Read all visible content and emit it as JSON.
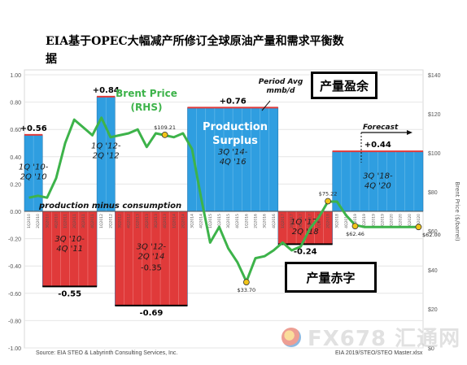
{
  "title": "EIA基于OPEC大幅减产所修订全球原油产量和需求平衡数据",
  "callouts": {
    "surplus": "产量盈余",
    "deficit": "产量赤字"
  },
  "watermark": "FX678 汇通网",
  "chart_data": {
    "type": "bar",
    "source": "Source:  EIA STEO & Labyrinth Consulting Services, Inc.",
    "file_note": "EIA 2019/STEO/STEO Master.xlsx",
    "left_axis": {
      "ylim": [
        -1.0,
        1.0
      ],
      "ticks": [
        "1.00",
        "0.80",
        "0.60",
        "0.40",
        "0.20",
        "0.00",
        "-0.20",
        "-0.40",
        "-0.60",
        "-0.80",
        "-1.00"
      ]
    },
    "right_axis": {
      "label": "Brent Price ($/barrel)",
      "ylim": [
        0,
        140
      ],
      "ticks": [
        "$140",
        "$120",
        "$100",
        "$80",
        "$60",
        "$40",
        "$20",
        "$0"
      ]
    },
    "quarters": [
      "1Q2010",
      "2Q2010",
      "3Q2010",
      "4Q2010",
      "1Q2011",
      "2Q2011",
      "3Q2011",
      "4Q2011",
      "1Q2012",
      "2Q2012",
      "3Q2012",
      "4Q2012",
      "1Q2013",
      "2Q2013",
      "3Q2013",
      "4Q2013",
      "1Q2014",
      "2Q2014",
      "3Q2014",
      "4Q2014",
      "1Q2015",
      "2Q2015",
      "3Q2015",
      "4Q2015",
      "1Q2016",
      "2Q2016",
      "3Q2016",
      "4Q2016",
      "1Q2017",
      "2Q2017",
      "3Q2017",
      "4Q2017",
      "1Q2018",
      "2Q2018",
      "3Q2018",
      "4Q2018",
      "1Q2019",
      "2Q2019",
      "3Q2019",
      "4Q2019",
      "1Q2020",
      "2Q2020",
      "3Q2020",
      "4Q2020"
    ],
    "balance_blocks": [
      {
        "from": 0,
        "to": 1,
        "value": 0.56,
        "value_label": "+0.56",
        "period": "1Q '10-\n2Q '10",
        "color": "#2f9ee0"
      },
      {
        "from": 2,
        "to": 7,
        "value": -0.55,
        "value_label": "-0.55",
        "period": "3Q '10-\n4Q '11",
        "color": "#e03a3a"
      },
      {
        "from": 8,
        "to": 9,
        "value": 0.84,
        "value_label": "+0.84",
        "period": "1Q '12-\n2Q '12",
        "color": "#2f9ee0"
      },
      {
        "from": 10,
        "to": 17,
        "value": -0.69,
        "value_label": "-0.69",
        "period": "3Q '12-\n2Q '14",
        "extra_label": "-0.35",
        "color": "#e03a3a"
      },
      {
        "from": 18,
        "to": 27,
        "value": 0.76,
        "value_label": "+0.76",
        "period": "3Q '14-\n4Q '16",
        "color": "#2f9ee0"
      },
      {
        "from": 28,
        "to": 33,
        "value": -0.24,
        "value_label": "-0.24",
        "period": "1Q '17-\n2Q '18",
        "color": "#e03a3a"
      },
      {
        "from": 34,
        "to": 43,
        "value": 0.44,
        "value_label": "+0.44",
        "period": "3Q '18-\n4Q '20",
        "color": "#2f9ee0"
      }
    ],
    "brent_price": {
      "name": "Brent Price",
      "axis_label": "(RHS)",
      "color": "#3db34a",
      "values": [
        77,
        78,
        77,
        87,
        105,
        117,
        113,
        109,
        118,
        108,
        109,
        110,
        112,
        103,
        110,
        109,
        108,
        110,
        102,
        77,
        54,
        62,
        51,
        44,
        34,
        46,
        47,
        50,
        54,
        50,
        52,
        61,
        67,
        75,
        75,
        68,
        63,
        62,
        62,
        62,
        62,
        62,
        62,
        62
      ],
      "point_labels": [
        {
          "index": 15,
          "value": 109.21,
          "label": "$109.21"
        },
        {
          "index": 24,
          "value": 33.7,
          "label": "$33.70"
        },
        {
          "index": 33,
          "value": 75.22,
          "label": "$75.22"
        },
        {
          "index": 36,
          "value": 62.46,
          "label": "$62.46"
        },
        {
          "index": 43,
          "value": 62.0,
          "label": "$62.00"
        }
      ]
    },
    "annotations": {
      "production_minus_consumption": "production minus consumption",
      "production_surplus": "Production\nSurplus",
      "period_avg": "Period Avg\nmmb/d",
      "forecast": "Forecast"
    }
  }
}
